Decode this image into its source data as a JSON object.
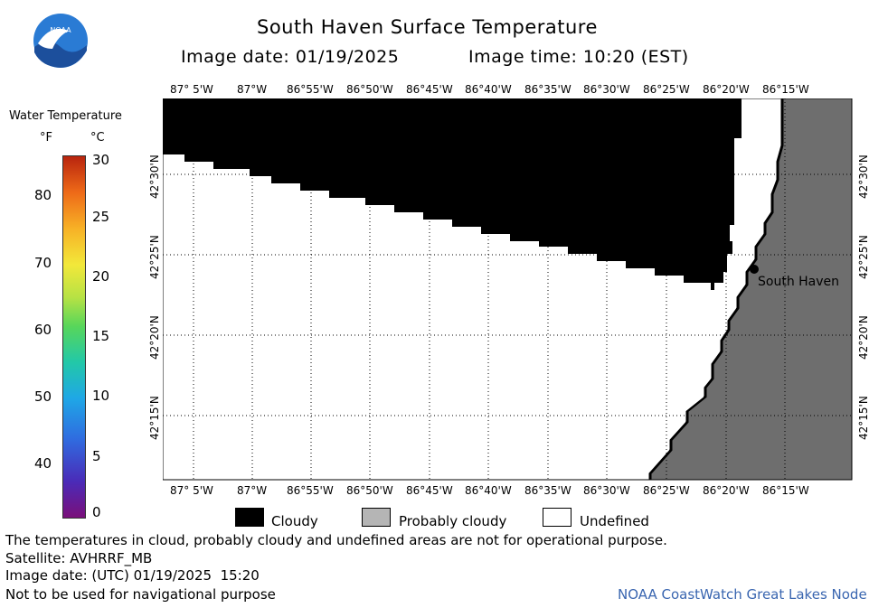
{
  "header": {
    "title": "South Haven Surface Temperature",
    "image_date_label": "Image date: 01/19/2025",
    "image_time_label": "Image time: 10:20 (EST)",
    "logo_text": "NOAA"
  },
  "colorbar": {
    "title": "Water Temperature",
    "unit_f": "°F",
    "unit_c": "°C",
    "f_ticks": [
      "80",
      "70",
      "60",
      "50",
      "40"
    ],
    "c_ticks": [
      "30",
      "25",
      "20",
      "15",
      "10",
      "5",
      "0"
    ],
    "range_c": [
      0,
      30
    ]
  },
  "map": {
    "lon_ticks": [
      "87° 5'W",
      "87°W",
      "86°55'W",
      "86°50'W",
      "86°45'W",
      "86°40'W",
      "86°35'W",
      "86°30'W",
      "86°25'W",
      "86°20'W",
      "86°15'W"
    ],
    "lat_ticks": [
      "42°30'N",
      "42°25'N",
      "42°20'N",
      "42°15'N"
    ],
    "place_label": "South Haven",
    "colors": {
      "cloud": "#000000",
      "land": "#6e6e6e",
      "undefined": "#ffffff"
    }
  },
  "legend": {
    "cloudy": "Cloudy",
    "probably_cloudy": "Probably cloudy",
    "undefined": "Undefined"
  },
  "footer": {
    "disclaimer": "The temperatures in cloud, probably cloudy and undefined areas are not for operational purpose.",
    "satellite": "Satellite: AVHRRF_MB",
    "utc_date": "Image date: (UTC) 01/19/2025  15:20",
    "nav_warning": "Not to be used for navigational purpose",
    "credit": "NOAA CoastWatch Great Lakes Node"
  }
}
